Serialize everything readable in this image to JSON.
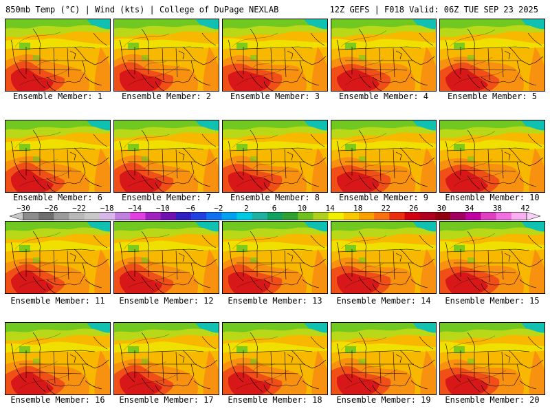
{
  "header": {
    "title_left": "850mb Temp (°C) | Wind (kts) | College of DuPage NEXLAB",
    "title_right": "12Z GEFS | F018 Valid: 06Z TUE SEP 23 2025"
  },
  "panels": [
    {
      "caption": "Ensemble Member: 1"
    },
    {
      "caption": "Ensemble Member: 2"
    },
    {
      "caption": "Ensemble Member: 3"
    },
    {
      "caption": "Ensemble Member: 4"
    },
    {
      "caption": "Ensemble Member: 5"
    },
    {
      "caption": "Ensemble Member: 6"
    },
    {
      "caption": "Ensemble Member: 7"
    },
    {
      "caption": "Ensemble Member: 8"
    },
    {
      "caption": "Ensemble Member: 9"
    },
    {
      "caption": "Ensemble Member: 10"
    },
    {
      "caption": "Ensemble Member: 11"
    },
    {
      "caption": "Ensemble Member: 12"
    },
    {
      "caption": "Ensemble Member: 13"
    },
    {
      "caption": "Ensemble Member: 14"
    },
    {
      "caption": "Ensemble Member: 15"
    },
    {
      "caption": "Ensemble Member: 16"
    },
    {
      "caption": "Ensemble Member: 17"
    },
    {
      "caption": "Ensemble Member: 18"
    },
    {
      "caption": "Ensemble Member: 19"
    },
    {
      "caption": "Ensemble Member: 20"
    }
  ],
  "colorbar": {
    "labels": [
      "−30",
      "−26",
      "−22",
      "−18",
      "−14",
      "−10",
      "−6",
      "−2",
      "2",
      "6",
      "10",
      "14",
      "18",
      "22",
      "26",
      "30",
      "34",
      "38",
      "42"
    ],
    "colors": [
      "#8c8c8c",
      "#6e6e6e",
      "#9a9a9a",
      "#b8b8b8",
      "#c8c8c8",
      "#d8b8e8",
      "#c080e0",
      "#e040e0",
      "#a020c0",
      "#7010b0",
      "#3020c0",
      "#2040e0",
      "#1070f0",
      "#00a0f0",
      "#00c8e0",
      "#20b0a0",
      "#10a060",
      "#30a030",
      "#70c020",
      "#b0d020",
      "#f0f000",
      "#f8c800",
      "#f8a000",
      "#f87010",
      "#e83010",
      "#d00010",
      "#b00020",
      "#900010",
      "#a00060",
      "#c000a0",
      "#e040c0",
      "#f070e0",
      "#f8b0f0"
    ],
    "fill_colors": {
      "deep_teal": "#10c0b0",
      "light_green": "#70c820",
      "yellow_green": "#b8d818",
      "yellow": "#f0e000",
      "gold": "#f8b800",
      "orange": "#f89010",
      "red_orange": "#f05018",
      "red": "#d81818"
    }
  }
}
